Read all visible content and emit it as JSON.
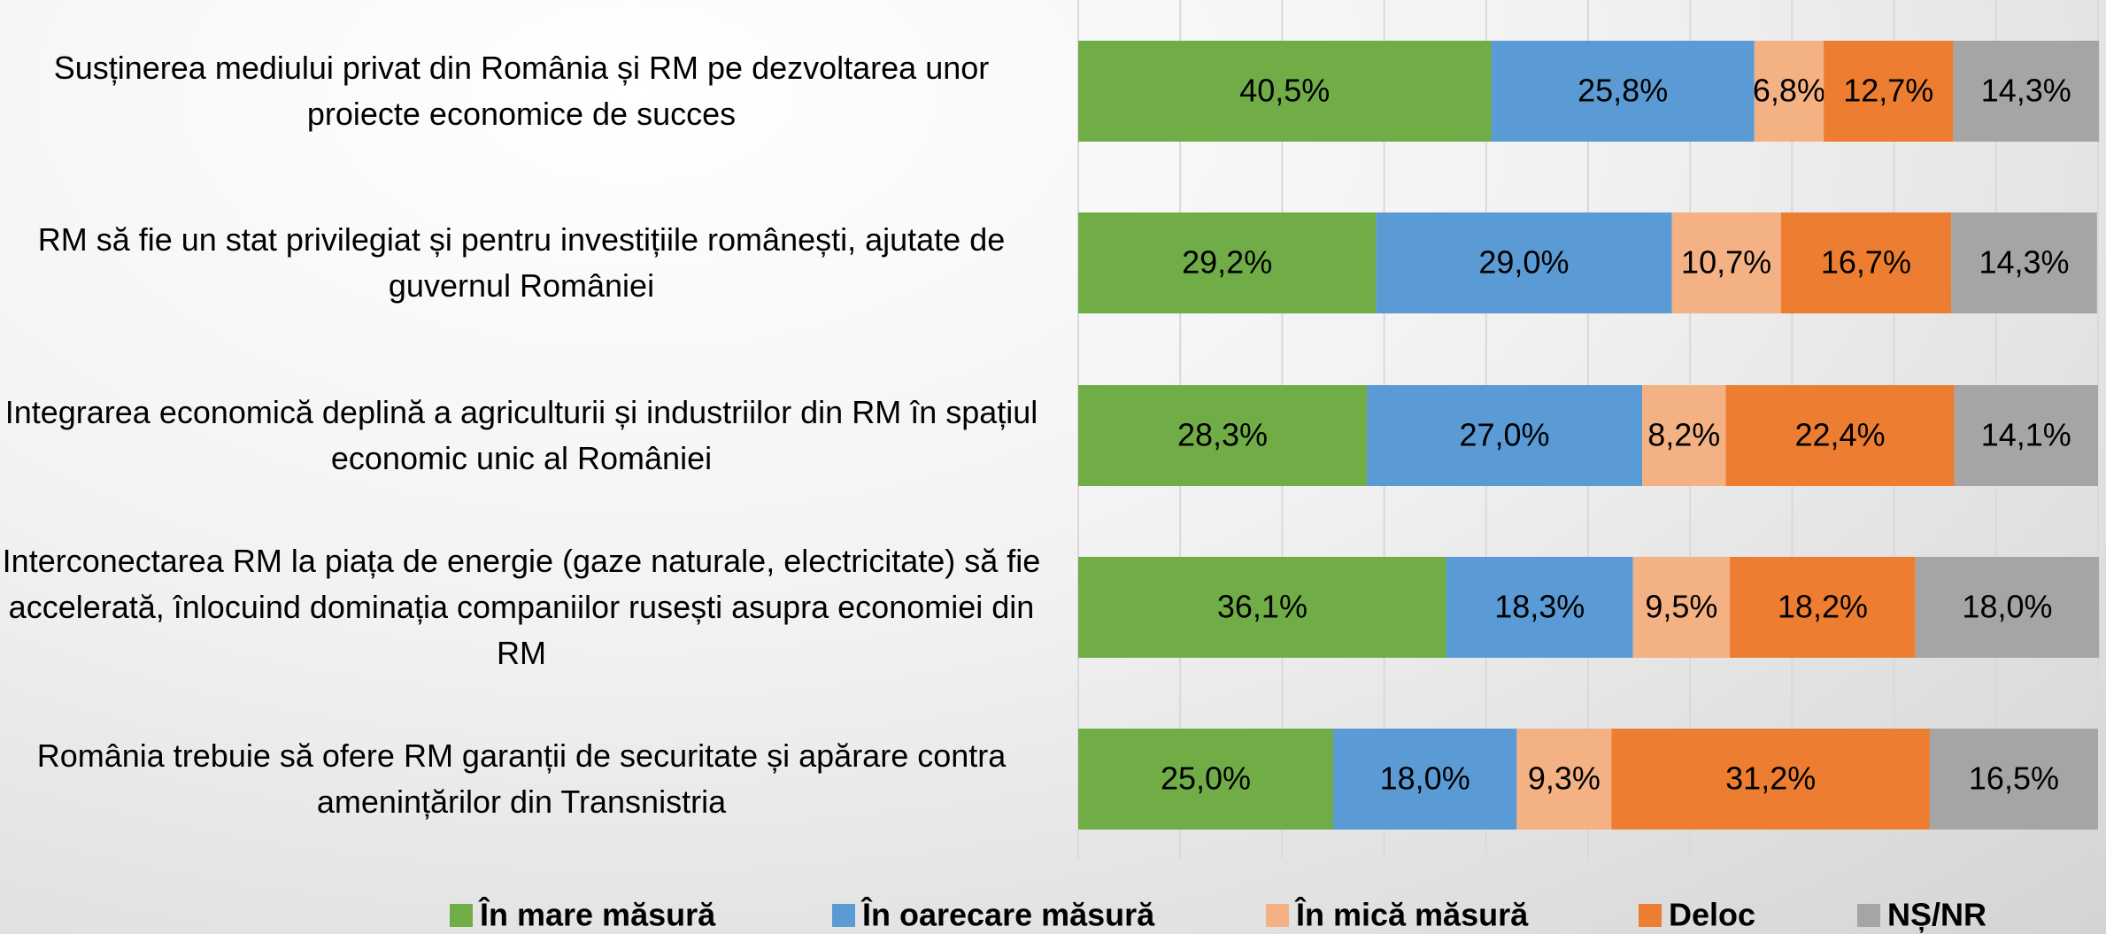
{
  "chart_data": {
    "type": "stacked-barh",
    "categories": [
      "Susținerea mediului privat din România și RM pe dezvoltarea unor proiecte economice de succes",
      "RM să fie un stat privilegiat și pentru investițiile românești, ajutate de guvernul României",
      "Integrarea economică deplină a agriculturii și industriilor din RM în spațiul economic unic al României",
      "Interconectarea RM la piața de energie (gaze naturale, electricitate) să fie accelerată, înlocuind dominația companiilor rusești asupra economiei din RM",
      "România trebuie să ofere RM garanții de securitate și apărare contra amenințărilor din Transnistria"
    ],
    "series": [
      {
        "name": "În mare măsură",
        "color": "#70ad47",
        "values": [
          40.5,
          29.2,
          28.3,
          36.1,
          25.0
        ],
        "value_labels": [
          "40,5%",
          "29,2%",
          "28,3%",
          "36,1%",
          "25,0%"
        ]
      },
      {
        "name": "În oarecare măsură",
        "color": "#5b9bd5",
        "values": [
          25.8,
          29.0,
          27.0,
          18.3,
          18.0
        ],
        "value_labels": [
          "25,8%",
          "29,0%",
          "27,0%",
          "18,3%",
          "18,0%"
        ]
      },
      {
        "name": "În mică măsură",
        "color": "#f4b183",
        "values": [
          6.8,
          10.7,
          8.2,
          9.5,
          9.3
        ],
        "value_labels": [
          "6,8%",
          "10,7%",
          "8,2%",
          "9,5%",
          "9,3%"
        ]
      },
      {
        "name": "Deloc",
        "color": "#ed7d31",
        "values": [
          12.7,
          16.7,
          22.4,
          18.2,
          31.2
        ],
        "value_labels": [
          "12,7%",
          "16,7%",
          "22,4%",
          "18,2%",
          "31,2%"
        ]
      },
      {
        "name": "NȘ/NR",
        "color": "#a5a5a5",
        "values": [
          14.3,
          14.3,
          14.1,
          18.0,
          16.5
        ],
        "value_labels": [
          "14,3%",
          "14,3%",
          "14,1%",
          "18,0%",
          "16,5%"
        ]
      }
    ],
    "xlim": [
      0,
      100
    ],
    "xticks": [
      0,
      10,
      20,
      30,
      40,
      50,
      60,
      70,
      80,
      90,
      100
    ],
    "grid": true,
    "legend": "bottom"
  }
}
